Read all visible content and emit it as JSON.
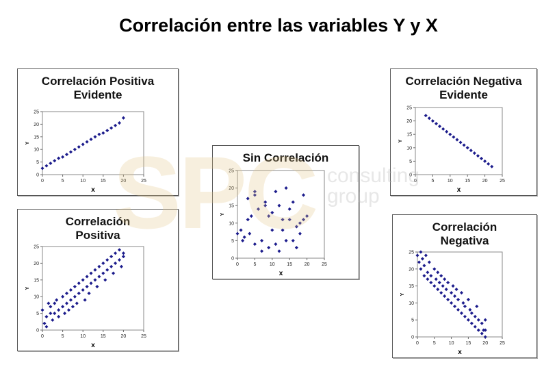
{
  "title": "Correlación entre las variables Y y X",
  "watermark": {
    "logo": "SPC",
    "line1": "consulting",
    "line2": "group"
  },
  "chart_data": [
    {
      "type": "scatter",
      "title": "Correlación Positiva Evidente",
      "x_label": "x",
      "y_label": "Y",
      "color": "#1c1c8c",
      "xlim": [
        0,
        25
      ],
      "ylim": [
        0,
        25
      ],
      "xticks": [
        0,
        5,
        10,
        15,
        20,
        25
      ],
      "yticks": [
        0,
        5,
        10,
        15,
        20,
        25
      ],
      "x": [
        0,
        1,
        2,
        3,
        4,
        5,
        6,
        7,
        8,
        9,
        10,
        11,
        12,
        13,
        14,
        15,
        16,
        17,
        18,
        19,
        20
      ],
      "values": [
        2.5,
        3.5,
        4.5,
        5.5,
        6.5,
        7,
        8,
        9,
        10,
        11,
        12,
        13,
        14,
        15,
        16,
        16.5,
        17.5,
        18.5,
        19.5,
        20.5,
        22.5
      ]
    },
    {
      "type": "scatter",
      "title": "Correlación Positiva",
      "x_label": "x",
      "y_label": "Y",
      "color": "#1c1c8c",
      "xlim": [
        0,
        25
      ],
      "ylim": [
        0,
        25
      ],
      "xticks": [
        0,
        5,
        10,
        15,
        20,
        25
      ],
      "yticks": [
        0,
        5,
        10,
        15,
        20,
        25
      ],
      "x": [
        0,
        0.5,
        1,
        1,
        1.5,
        2,
        2,
        2.5,
        3,
        3,
        3.5,
        4,
        4,
        5,
        5,
        5.5,
        6,
        6,
        6.5,
        7,
        7,
        7.5,
        8,
        8,
        8.5,
        9,
        9,
        10,
        10,
        10.5,
        11,
        11,
        11.5,
        12,
        12,
        13,
        13,
        13.5,
        14,
        14,
        15,
        15,
        15.5,
        16,
        16,
        17,
        17,
        17.5,
        18,
        18,
        19,
        19,
        19.5,
        20,
        20
      ],
      "values": [
        6,
        2,
        1,
        4,
        8,
        5,
        7,
        3,
        8,
        5,
        9,
        6,
        4,
        10,
        7,
        5,
        11,
        8,
        6,
        12,
        9,
        7,
        13,
        10,
        8,
        14,
        11,
        15,
        12,
        9,
        16,
        13,
        11,
        17,
        14,
        18,
        15,
        13,
        19,
        16,
        20,
        17,
        15,
        21,
        18,
        22,
        19,
        17,
        23,
        20,
        24,
        21,
        19,
        23,
        22
      ]
    },
    {
      "type": "scatter",
      "title": "Sin Correlación",
      "x_label": "x",
      "y_label": "Y",
      "color": "#1c1c8c",
      "xlim": [
        0,
        25
      ],
      "ylim": [
        0,
        25
      ],
      "xticks": [
        0,
        5,
        10,
        15,
        20,
        25
      ],
      "yticks": [
        0,
        5,
        10,
        15,
        20,
        25
      ],
      "x": [
        0,
        1,
        1.5,
        2,
        3,
        3,
        3.5,
        4,
        5,
        5,
        5,
        6,
        7,
        7,
        8,
        8,
        9,
        9,
        10,
        10,
        11,
        11,
        12,
        12,
        13,
        13,
        14,
        14,
        15,
        15,
        16,
        16,
        17,
        17,
        18,
        18,
        19,
        19,
        20
      ],
      "values": [
        7,
        8,
        5,
        6,
        17,
        11,
        7,
        12,
        18,
        19,
        4,
        14,
        2,
        5,
        15,
        16,
        12,
        3,
        13,
        8,
        19,
        4,
        15,
        2,
        8,
        11,
        20,
        5,
        11,
        14,
        5,
        16,
        3,
        9,
        10,
        7,
        18,
        11,
        12
      ]
    },
    {
      "type": "scatter",
      "title": "Correlación Negativa Evidente",
      "x_label": "x",
      "y_label": "Y",
      "color": "#1c1c8c",
      "xlim": [
        0,
        25
      ],
      "ylim": [
        0,
        25
      ],
      "xticks": [
        0,
        5,
        10,
        15,
        20,
        25
      ],
      "yticks": [
        0,
        5,
        10,
        15,
        20,
        25
      ],
      "x": [
        3,
        4,
        5,
        6,
        7,
        8,
        9,
        10,
        11,
        12,
        13,
        14,
        15,
        16,
        17,
        18,
        19,
        20,
        21,
        22
      ],
      "values": [
        22,
        21,
        20,
        19,
        18,
        17,
        16,
        15,
        14,
        13,
        12,
        11,
        10,
        9,
        8,
        7,
        6,
        5,
        4,
        3
      ]
    },
    {
      "type": "scatter",
      "title": "Correlación Negativa",
      "x_label": "x",
      "y_label": "Y",
      "color": "#1c1c8c",
      "xlim": [
        0,
        25
      ],
      "ylim": [
        0,
        25
      ],
      "xticks": [
        0,
        5,
        10,
        15,
        20,
        25
      ],
      "yticks": [
        0,
        5,
        10,
        15,
        20,
        25
      ],
      "x": [
        0,
        0.5,
        1,
        1,
        1.5,
        2,
        2,
        2.5,
        3,
        3,
        3.5,
        4,
        4,
        5,
        5,
        5.5,
        6,
        6,
        6.5,
        7,
        7,
        7.5,
        8,
        8,
        8.5,
        9,
        9,
        10,
        10,
        10.5,
        11,
        11,
        11.5,
        12,
        12,
        13,
        13,
        13.5,
        14,
        14,
        15,
        15,
        15.5,
        16,
        16,
        17,
        17,
        17.5,
        18,
        18,
        19,
        19,
        19.5,
        20,
        20,
        20
      ],
      "values": [
        24,
        22,
        25,
        20,
        23,
        18,
        21,
        24,
        17,
        19,
        22,
        16,
        18,
        20,
        15,
        17,
        14,
        19,
        16,
        13,
        18,
        15,
        12,
        17,
        14,
        11,
        16,
        13,
        10,
        15,
        9,
        12,
        14,
        8,
        11,
        7,
        13,
        10,
        6,
        9,
        5,
        11,
        8,
        4,
        7,
        3,
        6,
        9,
        2,
        5,
        1,
        4,
        2,
        0,
        5,
        2
      ]
    }
  ]
}
